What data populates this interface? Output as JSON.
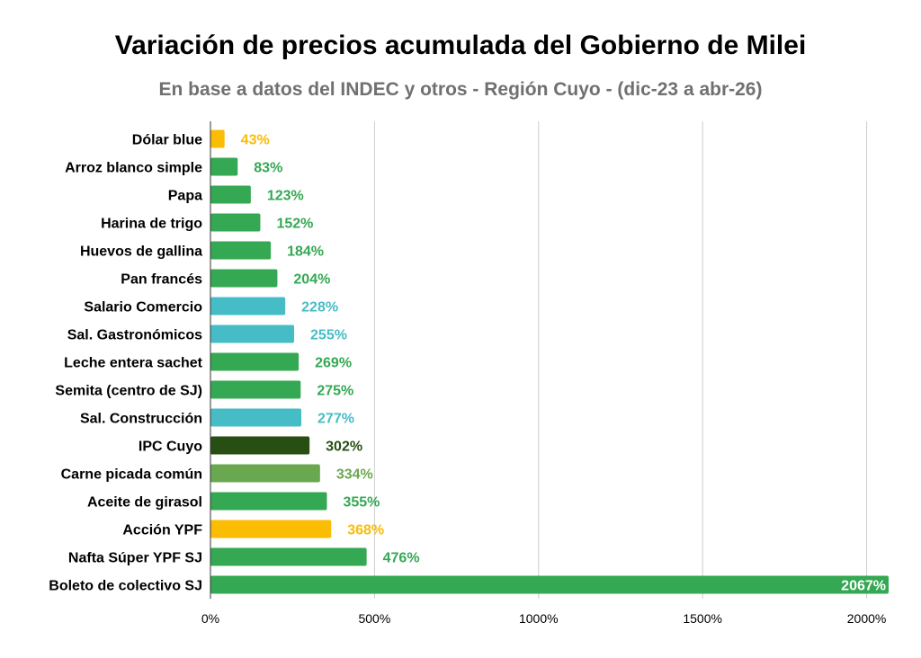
{
  "chart_data": {
    "type": "bar",
    "orientation": "horizontal",
    "title": "Variación de precios acumulada del Gobierno de Milei",
    "subtitle": "En base a datos del INDEC y otros - Región Cuyo - (dic-23 a abr-26)",
    "xlabel": "",
    "ylabel": "",
    "xlim": [
      0,
      2067
    ],
    "x_ticks": [
      0,
      500,
      1000,
      1500,
      2000
    ],
    "x_tick_labels": [
      "0%",
      "500%",
      "1000%",
      "1500%",
      "2000%"
    ],
    "grid": "vertical",
    "legend": "none",
    "bars": [
      {
        "category": "Dólar blue",
        "value": 43,
        "label": "43%",
        "color": "#fbbc04"
      },
      {
        "category": "Arroz blanco simple",
        "value": 83,
        "label": "83%",
        "color": "#34a853"
      },
      {
        "category": "Papa",
        "value": 123,
        "label": "123%",
        "color": "#34a853"
      },
      {
        "category": "Harina de trigo",
        "value": 152,
        "label": "152%",
        "color": "#34a853"
      },
      {
        "category": "Huevos de gallina",
        "value": 184,
        "label": "184%",
        "color": "#34a853"
      },
      {
        "category": "Pan francés",
        "value": 204,
        "label": "204%",
        "color": "#34a853"
      },
      {
        "category": "Salario Comercio",
        "value": 228,
        "label": "228%",
        "color": "#46bdc6"
      },
      {
        "category": "Sal. Gastronómicos",
        "value": 255,
        "label": "255%",
        "color": "#46bdc6"
      },
      {
        "category": "Leche entera sachet",
        "value": 269,
        "label": "269%",
        "color": "#34a853"
      },
      {
        "category": "Semita (centro de SJ)",
        "value": 275,
        "label": "275%",
        "color": "#34a853"
      },
      {
        "category": "Sal. Construcción",
        "value": 277,
        "label": "277%",
        "color": "#46bdc6"
      },
      {
        "category": "IPC Cuyo",
        "value": 302,
        "label": "302%",
        "color": "#274e13"
      },
      {
        "category": "Carne picada común",
        "value": 334,
        "label": "334%",
        "color": "#6aa84f"
      },
      {
        "category": "Aceite de girasol",
        "value": 355,
        "label": "355%",
        "color": "#34a853"
      },
      {
        "category": "Acción YPF",
        "value": 368,
        "label": "368%",
        "color": "#fbbc04"
      },
      {
        "category": "Nafta Súper YPF SJ",
        "value": 476,
        "label": "476%",
        "color": "#34a853"
      },
      {
        "category": "Boleto de colectivo SJ",
        "value": 2067,
        "label": "2067%",
        "color": "#34a853"
      }
    ]
  }
}
